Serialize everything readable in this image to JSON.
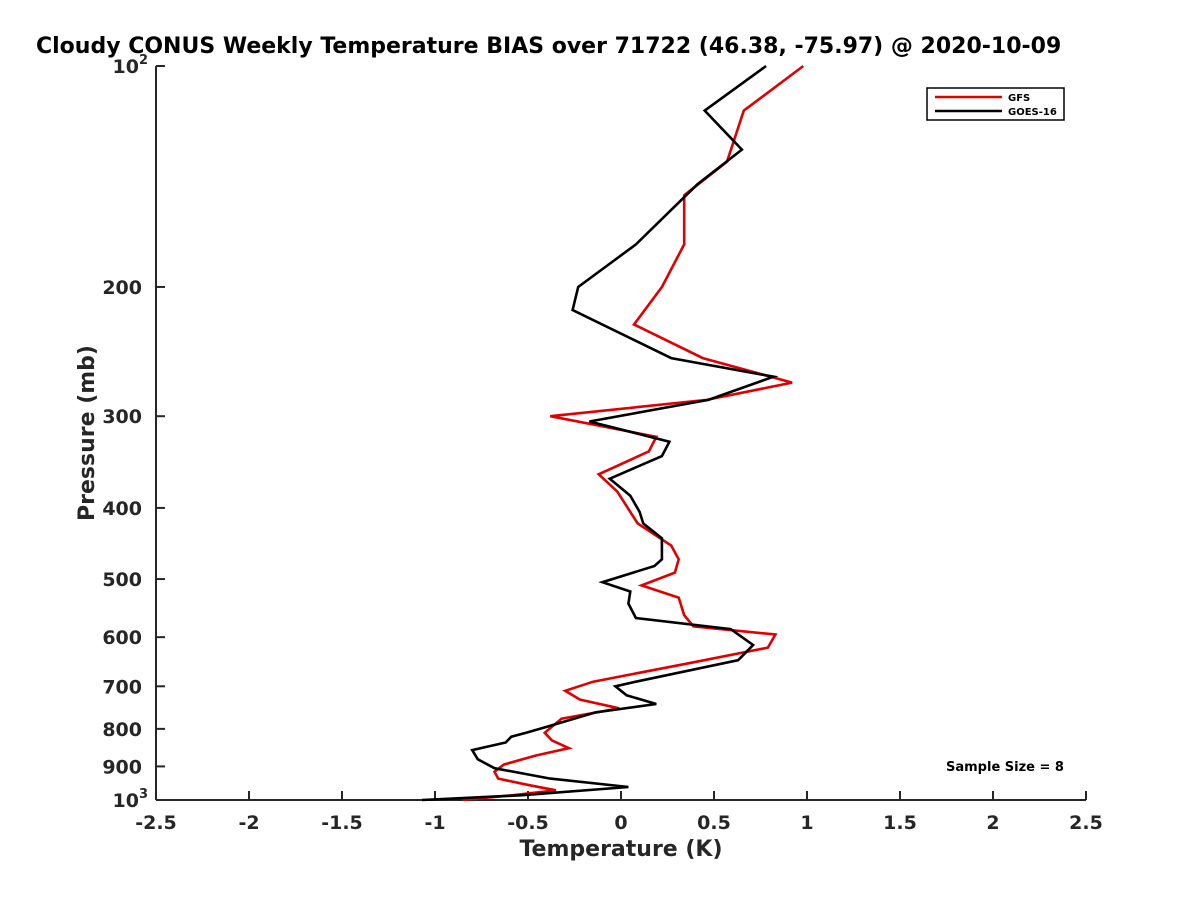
{
  "chart_data": {
    "type": "line",
    "title": "Cloudy CONUS Weekly Temperature BIAS over 71722 (46.38, -75.97) @ 2020-10-09",
    "xlabel": "Temperature (K)",
    "ylabel": "Pressure (mb)",
    "xlim": [
      -2.5,
      2.5
    ],
    "ylim": [
      100,
      1000
    ],
    "y_scale": "log",
    "y_reversed": true,
    "grid": false,
    "legend_position": "top-right",
    "annotation": "Sample Size = 8",
    "x_ticks": [
      {
        "value": -2.5,
        "label": "-2.5"
      },
      {
        "value": -2,
        "label": "-2"
      },
      {
        "value": -1.5,
        "label": "-1.5"
      },
      {
        "value": -1,
        "label": "-1"
      },
      {
        "value": -0.5,
        "label": "-0.5"
      },
      {
        "value": 0,
        "label": "0"
      },
      {
        "value": 0.5,
        "label": "0.5"
      },
      {
        "value": 1,
        "label": "1"
      },
      {
        "value": 1.5,
        "label": "1.5"
      },
      {
        "value": 2,
        "label": "2"
      },
      {
        "value": 2.5,
        "label": "2.5"
      }
    ],
    "y_ticks": [
      {
        "value": 100,
        "base": "10",
        "exp": "2"
      },
      {
        "value": 200,
        "label": "200"
      },
      {
        "value": 300,
        "label": "300"
      },
      {
        "value": 400,
        "label": "400"
      },
      {
        "value": 500,
        "label": "500"
      },
      {
        "value": 600,
        "label": "600"
      },
      {
        "value": 700,
        "label": "700"
      },
      {
        "value": 800,
        "label": "800"
      },
      {
        "value": 900,
        "label": "900"
      },
      {
        "value": 1000,
        "base": "10",
        "exp": "3"
      }
    ],
    "series": [
      {
        "name": "GFS",
        "color": "#e00000",
        "points": [
          [
            0.98,
            100
          ],
          [
            0.66,
            115
          ],
          [
            0.57,
            135
          ],
          [
            0.34,
            150
          ],
          [
            0.34,
            175
          ],
          [
            0.22,
            200
          ],
          [
            0.07,
            225
          ],
          [
            0.44,
            250
          ],
          [
            0.92,
            270
          ],
          [
            0.46,
            285
          ],
          [
            -0.38,
            300
          ],
          [
            0.19,
            320
          ],
          [
            0.15,
            335
          ],
          [
            -0.12,
            360
          ],
          [
            -0.02,
            380
          ],
          [
            0.09,
            420
          ],
          [
            0.27,
            450
          ],
          [
            0.31,
            470
          ],
          [
            0.29,
            490
          ],
          [
            0.11,
            510
          ],
          [
            0.31,
            530
          ],
          [
            0.34,
            560
          ],
          [
            0.39,
            580
          ],
          [
            0.83,
            595
          ],
          [
            0.79,
            620
          ],
          [
            0.38,
            650
          ],
          [
            -0.15,
            690
          ],
          [
            -0.3,
            710
          ],
          [
            -0.22,
            730
          ],
          [
            -0.01,
            750
          ],
          [
            -0.32,
            775
          ],
          [
            -0.41,
            810
          ],
          [
            -0.37,
            830
          ],
          [
            -0.28,
            850
          ],
          [
            -0.46,
            870
          ],
          [
            -0.63,
            895
          ],
          [
            -0.68,
            915
          ],
          [
            -0.66,
            935
          ],
          [
            -0.49,
            955
          ],
          [
            -0.35,
            970
          ],
          [
            -0.58,
            985
          ],
          [
            -0.85,
            1000
          ]
        ]
      },
      {
        "name": "GOES-16",
        "color": "#000000",
        "points": [
          [
            0.78,
            100
          ],
          [
            0.45,
            115
          ],
          [
            0.65,
            130
          ],
          [
            0.41,
            145
          ],
          [
            0.08,
            175
          ],
          [
            -0.23,
            200
          ],
          [
            -0.26,
            215
          ],
          [
            0.27,
            250
          ],
          [
            0.82,
            265
          ],
          [
            0.47,
            285
          ],
          [
            -0.17,
            305
          ],
          [
            0.26,
            325
          ],
          [
            0.22,
            340
          ],
          [
            -0.06,
            365
          ],
          [
            0.05,
            385
          ],
          [
            0.1,
            405
          ],
          [
            0.12,
            420
          ],
          [
            0.22,
            440
          ],
          [
            0.22,
            470
          ],
          [
            0.18,
            480
          ],
          [
            -0.1,
            505
          ],
          [
            0.05,
            520
          ],
          [
            0.04,
            540
          ],
          [
            0.08,
            565
          ],
          [
            0.59,
            585
          ],
          [
            0.71,
            615
          ],
          [
            0.63,
            645
          ],
          [
            0.08,
            690
          ],
          [
            -0.03,
            700
          ],
          [
            0.03,
            720
          ],
          [
            0.19,
            740
          ],
          [
            -0.14,
            760
          ],
          [
            -0.4,
            795
          ],
          [
            -0.51,
            810
          ],
          [
            -0.59,
            820
          ],
          [
            -0.62,
            835
          ],
          [
            -0.8,
            855
          ],
          [
            -0.77,
            880
          ],
          [
            -0.68,
            905
          ],
          [
            -0.38,
            935
          ],
          [
            0.04,
            960
          ],
          [
            -0.53,
            985
          ],
          [
            -1.07,
            1000
          ]
        ]
      }
    ]
  }
}
